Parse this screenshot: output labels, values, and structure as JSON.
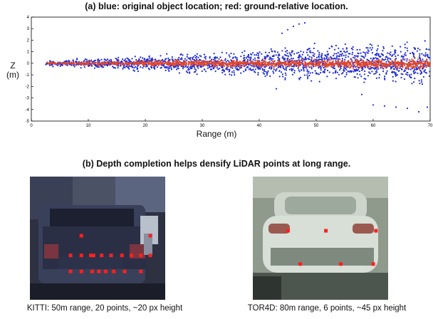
{
  "caption_a": "(a) blue: original object location; red: ground-relative location.",
  "caption_b": "(b) Depth completion helps densify LiDAR points at long range.",
  "chart_data": {
    "type": "scatter",
    "title": "(a) blue: original object location; red: ground-relative location.",
    "xlabel": "Range (m)",
    "ylabel": "Z\n(m)",
    "ylabel_lines": [
      "Z",
      "(m)"
    ],
    "xlim": [
      0,
      70
    ],
    "ylim": [
      -5,
      4
    ],
    "xticks": [
      0,
      10,
      20,
      30,
      40,
      50,
      60,
      70
    ],
    "yticks": [
      4,
      3,
      2,
      1,
      0,
      -1,
      -2,
      -3,
      -4,
      -5
    ],
    "series": [
      {
        "color": "#1f2bd6",
        "description_points": [
          {
            "x": 2.5,
            "y_low": -0.3,
            "y_high": 0.3
          },
          {
            "x": 20,
            "y_low": -0.8,
            "y_high": 0.8
          },
          {
            "x": 40,
            "y_low": -1.5,
            "y_high": 1.5
          },
          {
            "x": 55,
            "y_low": -2.0,
            "y_high": 2.2
          },
          {
            "x": 70,
            "y_low": -2.3,
            "y_high": 2.2
          }
        ],
        "outliers": [
          [
            46,
            3.2
          ],
          [
            47,
            3.4
          ],
          [
            48,
            3.5
          ],
          [
            45,
            2.9
          ],
          [
            44,
            2.6
          ],
          [
            60,
            -3.6
          ],
          [
            62,
            -3.7
          ],
          [
            64,
            -3.8
          ],
          [
            66,
            -3.9
          ],
          [
            68,
            -4.2
          ],
          [
            69.5,
            -3.8
          ],
          [
            43,
            -2.2
          ],
          [
            58,
            -2.7
          ]
        ]
      },
      {
        "color": "#e0472d",
        "description_points": [
          {
            "x": 2.5,
            "y_low": -0.15,
            "y_high": 0.15
          },
          {
            "x": 30,
            "y_low": -0.35,
            "y_high": 0.35
          },
          {
            "x": 70,
            "y_low": -0.6,
            "y_high": 0.5
          }
        ]
      }
    ]
  },
  "images": [
    {
      "label": "KITTI: 50m range, 20 points, ~20 px height",
      "points": [
        [
          0.38,
          0.48
        ],
        [
          0.89,
          0.48
        ],
        [
          0.3,
          0.64
        ],
        [
          0.38,
          0.64
        ],
        [
          0.45,
          0.64
        ],
        [
          0.47,
          0.64
        ],
        [
          0.53,
          0.64
        ],
        [
          0.6,
          0.64
        ],
        [
          0.68,
          0.64
        ],
        [
          0.75,
          0.64
        ],
        [
          0.82,
          0.64
        ],
        [
          0.89,
          0.64
        ],
        [
          0.3,
          0.77
        ],
        [
          0.38,
          0.77
        ],
        [
          0.46,
          0.77
        ],
        [
          0.51,
          0.77
        ],
        [
          0.56,
          0.77
        ],
        [
          0.62,
          0.77
        ],
        [
          0.7,
          0.77
        ],
        [
          0.82,
          0.77
        ]
      ]
    },
    {
      "label": "TOR4D: 80m range, 6 points, ~45 px height",
      "points": [
        [
          0.26,
          0.44
        ],
        [
          0.54,
          0.44
        ],
        [
          0.91,
          0.44
        ],
        [
          0.35,
          0.71
        ],
        [
          0.65,
          0.71
        ],
        [
          0.89,
          0.71
        ]
      ]
    }
  ],
  "colors": {
    "blue_points": "#1f2bd6",
    "red_points": "#e0472d",
    "lidar_marker": "#ff2020"
  }
}
